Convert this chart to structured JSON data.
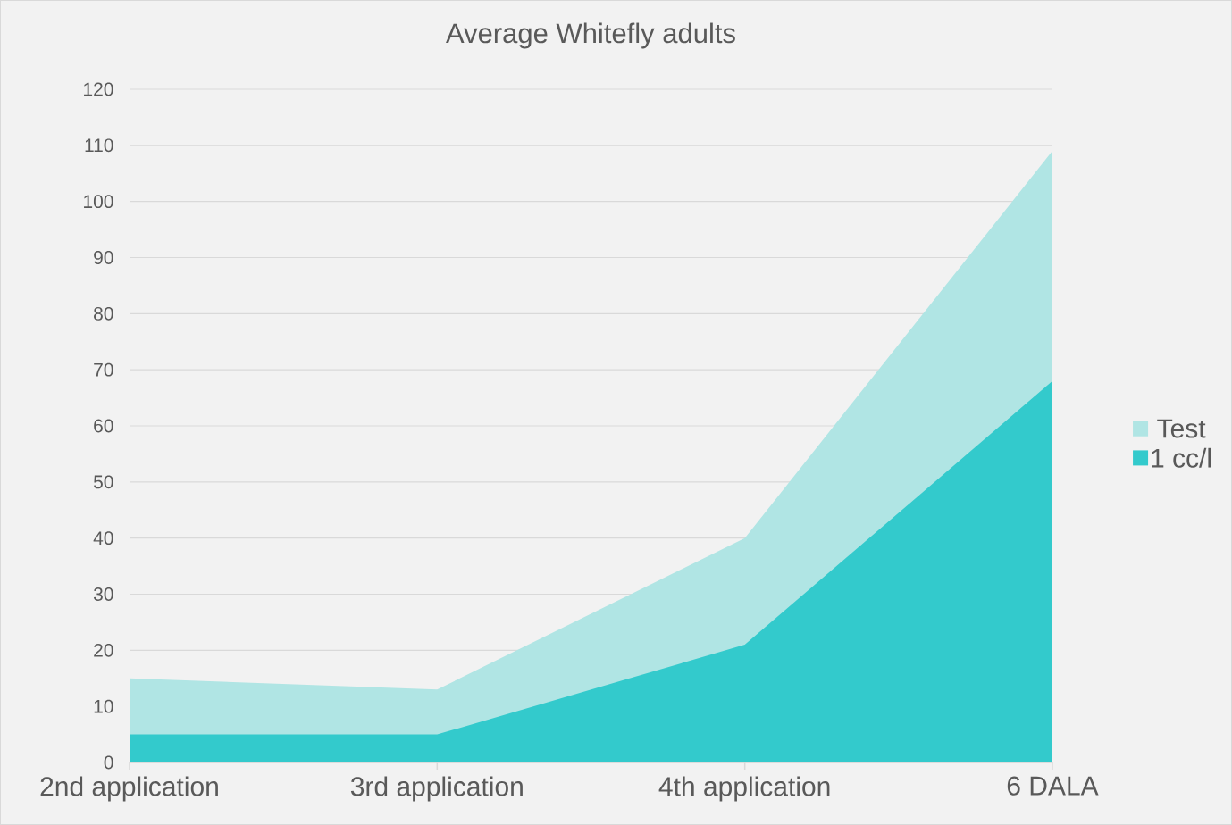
{
  "chart_data": {
    "type": "area",
    "title": "Average Whitefly adults",
    "categories": [
      "2nd application",
      "3rd application",
      "4th application",
      "6 DALA"
    ],
    "series": [
      {
        "name": "Test",
        "color": "#b0e5e4",
        "values": [
          15,
          13,
          40,
          109
        ]
      },
      {
        "name": "1 cc/l",
        "color": "#33cacc",
        "values": [
          5,
          5,
          21,
          68
        ]
      }
    ],
    "ylim": [
      0,
      120
    ],
    "yticks": [
      0,
      10,
      20,
      30,
      40,
      50,
      60,
      70,
      80,
      90,
      100,
      110,
      120
    ],
    "grid": "y",
    "legend": "right"
  }
}
